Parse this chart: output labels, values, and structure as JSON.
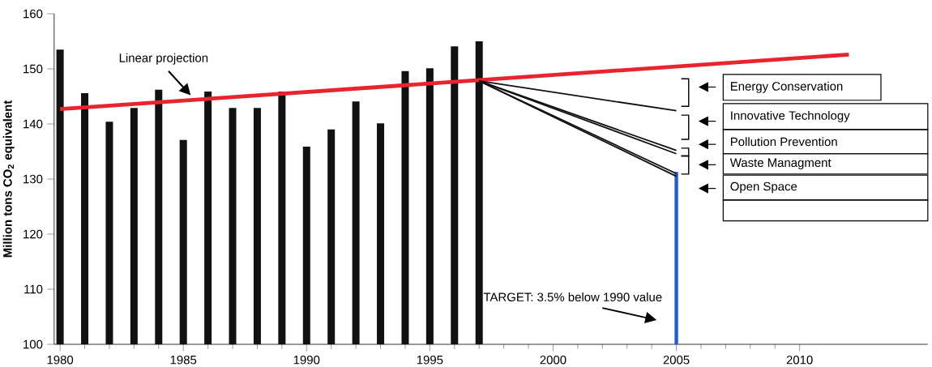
{
  "chart_data": {
    "type": "bar",
    "ylabel": "Million tons CO$_{2}$ equivalent",
    "xlim": [
      1979.76,
      2015.2
    ],
    "ylim": [
      100,
      160
    ],
    "xticks": [
      1980,
      1985,
      1990,
      1995,
      2000,
      2005,
      2010
    ],
    "yticks": [
      100,
      110,
      120,
      130,
      140,
      150,
      160
    ],
    "grid": false,
    "annotations": [
      "Linear projection",
      "Energy Conservation",
      "Innovative Technology",
      "Pollution Prevention",
      "Waste Managment",
      "Open Space",
      "TARGET: 3.5% below 1990 value"
    ],
    "series": [
      {
        "color": "#111111",
        "x": [
          1980,
          1981,
          1982,
          1983,
          1984,
          1985,
          1986,
          1987,
          1988,
          1989,
          1990,
          1991,
          1992,
          1993,
          1994,
          1995,
          1996,
          1997
        ],
        "values": [
          153.5,
          145.6,
          140.4,
          142.9,
          146.2,
          137.1,
          145.9,
          142.9,
          142.9,
          145.9,
          135.9,
          139.0,
          144.1,
          140.1,
          149.6,
          150.1,
          154.1,
          155.0
        ]
      },
      {
        "color": "#1f5fd6",
        "x": [
          2005
        ],
        "values": [
          131.3
        ]
      },
      {
        "type": "line",
        "color": "#e8252f",
        "x": [
          1980,
          2012
        ],
        "values": [
          142.7,
          152.6
        ]
      },
      {
        "type": "line",
        "color": "#111111",
        "x": [
          1997,
          2005
        ],
        "values": [
          147.8,
          142.4
        ]
      },
      {
        "type": "line",
        "color": "#111111",
        "x": [
          1997,
          2005
        ],
        "values": [
          147.8,
          135.2
        ]
      },
      {
        "type": "line",
        "color": "#111111",
        "x": [
          1997,
          2005
        ],
        "values": [
          147.8,
          134.6
        ]
      },
      {
        "type": "line",
        "color": "#111111",
        "x": [
          1997,
          2005
        ],
        "values": [
          147.8,
          131.0
        ]
      },
      {
        "type": "line",
        "color": "#111111",
        "x": [
          1997,
          2005
        ],
        "values": [
          147.8,
          130.5
        ]
      }
    ]
  }
}
